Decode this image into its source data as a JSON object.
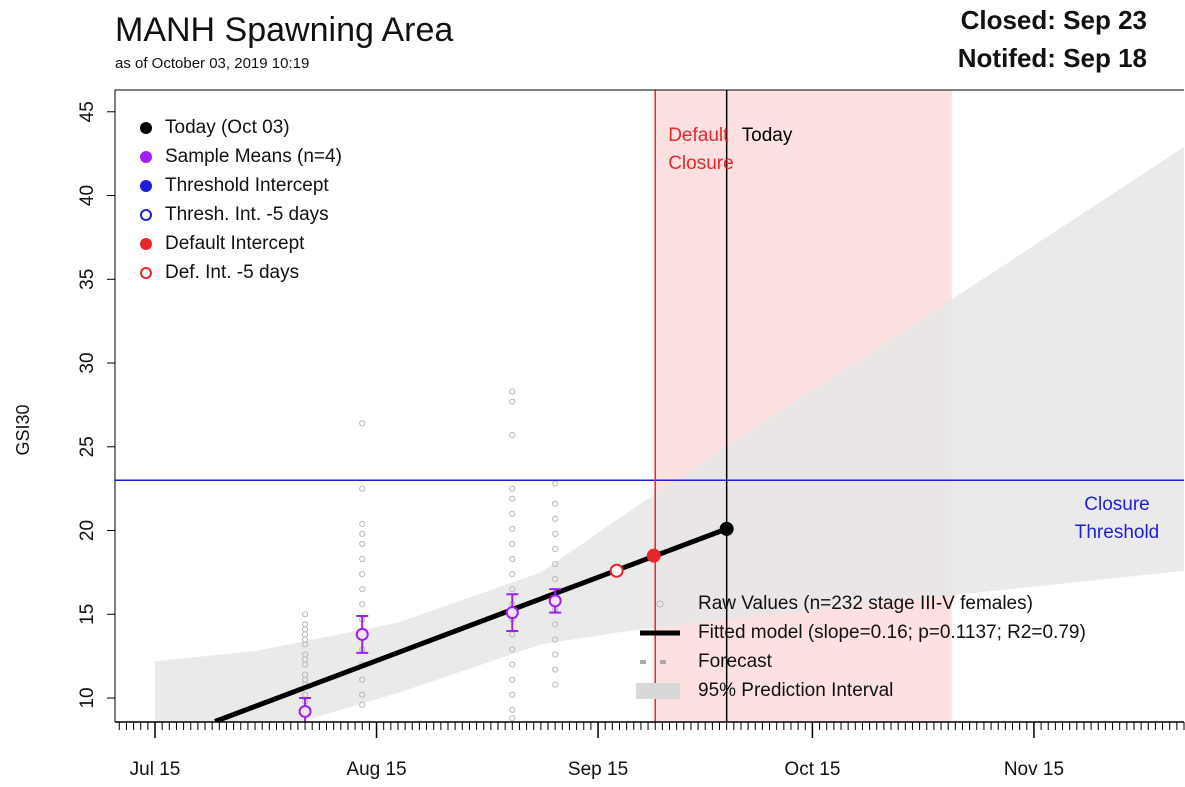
{
  "chart_data": {
    "type": "scatter",
    "title": "MANH Spawning Area",
    "subtitle": "as of October 03, 2019 10:19",
    "status_lines": [
      "Closed: Sep 23",
      "Notifed: Sep 18"
    ],
    "y_label": "GSI30",
    "xlim": [
      190.4,
      340
    ],
    "ylim": [
      8.57,
      46.3
    ],
    "xticks": [
      {
        "value": 196,
        "label": "Jul 15"
      },
      {
        "value": 227,
        "label": "Aug 15"
      },
      {
        "value": 258,
        "label": "Sep 15"
      },
      {
        "value": 288,
        "label": "Oct 15"
      },
      {
        "value": 319,
        "label": "Nov 15"
      }
    ],
    "yticks": [
      10,
      15,
      20,
      25,
      30,
      35,
      40,
      45
    ],
    "x_minor_tick_step": 1,
    "closure_shade": {
      "x": [
        266,
        307.5
      ],
      "color": "#fde0e0"
    },
    "default_closure": {
      "x": 266,
      "color": "#e8262b",
      "label": [
        "Default",
        "Closure"
      ]
    },
    "today_line": {
      "x": 276,
      "color": "#000000",
      "label": "Today"
    },
    "threshold": {
      "y": 23,
      "color": "#1f1fd6",
      "label": [
        "Closure",
        "Threshold"
      ]
    },
    "prediction_interval": {
      "color": "#e6e6e6",
      "x": [
        196,
        210,
        230,
        250,
        260.5,
        280,
        300,
        320,
        340
      ],
      "upper": [
        12.2,
        12.8,
        14.5,
        17.5,
        20.6,
        26.2,
        31.7,
        37.3,
        42.9
      ],
      "lower": [
        6.5,
        7.8,
        10.3,
        13.2,
        13.9,
        14.9,
        15.8,
        16.7,
        17.6
      ]
    },
    "raw": {
      "name": "Raw Values (n=232 stage III-V females)",
      "color": "#b8b8b8",
      "x": [
        217,
        217,
        217,
        217,
        217,
        217,
        217,
        217,
        217,
        217,
        217,
        217,
        217,
        217,
        217,
        225,
        225,
        225,
        225,
        225,
        225,
        225,
        225,
        225,
        225,
        225,
        225,
        225,
        225,
        225,
        225,
        246,
        246,
        246,
        246,
        246,
        246,
        246,
        246,
        246,
        246,
        246,
        246,
        246,
        246,
        246,
        246,
        246,
        246,
        246,
        246,
        252,
        252,
        252,
        252,
        252,
        252,
        252,
        252,
        252,
        252,
        252,
        252,
        252,
        252
      ],
      "y": [
        15,
        14.4,
        13.8,
        13.2,
        12.6,
        12,
        11.4,
        10.8,
        10.2,
        9.8,
        9.3,
        11.1,
        12.3,
        13.5,
        14.1,
        26.4,
        22.5,
        20.4,
        19.8,
        19.2,
        18.3,
        17.4,
        16.5,
        15.6,
        14.7,
        13.8,
        12.9,
        12,
        11.1,
        10.2,
        9.6,
        28.3,
        27.7,
        25.7,
        22.5,
        21.9,
        21,
        20.1,
        19.2,
        18.3,
        17.4,
        16.5,
        15.6,
        14.7,
        13.8,
        12.9,
        12,
        11.1,
        10.2,
        9.3,
        8.8,
        22.8,
        21.6,
        20.7,
        19.8,
        18.9,
        18,
        17.1,
        16.2,
        15.3,
        14.4,
        13.5,
        12.6,
        11.7,
        10.8
      ]
    },
    "sample_means": {
      "color": "#a020f0",
      "x": [
        217,
        225,
        246,
        252
      ],
      "values": [
        9.2,
        13.8,
        15.1,
        15.8
      ],
      "errors": [
        0.8,
        1.1,
        1.1,
        0.7
      ]
    },
    "fitted": {
      "name": "Fitted model (slope=0.16; p=0.1137; R2=0.79)",
      "color": "#000000",
      "x": [
        204.4,
        276
      ],
      "y": [
        8.6,
        20.1
      ]
    },
    "points": [
      {
        "x": 260.6,
        "y": 17.6,
        "color": "#e8262b",
        "filled": false
      },
      {
        "x": 265.8,
        "y": 18.5,
        "color": "#e8262b",
        "filled": true
      },
      {
        "x": 276,
        "y": 20.1,
        "color": "#000000",
        "filled": true
      }
    ],
    "legend": [
      {
        "label": "Today (Oct 03)",
        "color": "#000000",
        "filled": true
      },
      {
        "label": "Sample Means (n=4)",
        "color": "#a020f0",
        "filled": true
      },
      {
        "label": "Threshold Intercept",
        "color": "#1f1fd6",
        "filled": true
      },
      {
        "label": "Thresh. Int. -5 days",
        "color": "#1f1fd6",
        "filled": false
      },
      {
        "label": "Default Intercept",
        "color": "#e8262b",
        "filled": true
      },
      {
        "label": "Def. Int. -5 days",
        "color": "#e8262b",
        "filled": false
      }
    ],
    "legend2": [
      "Raw Values (n=232 stage III-V females)",
      "Fitted model (slope=0.16; p=0.1137; R2=0.79)",
      "Forecast",
      "95% Prediction Interval"
    ]
  }
}
